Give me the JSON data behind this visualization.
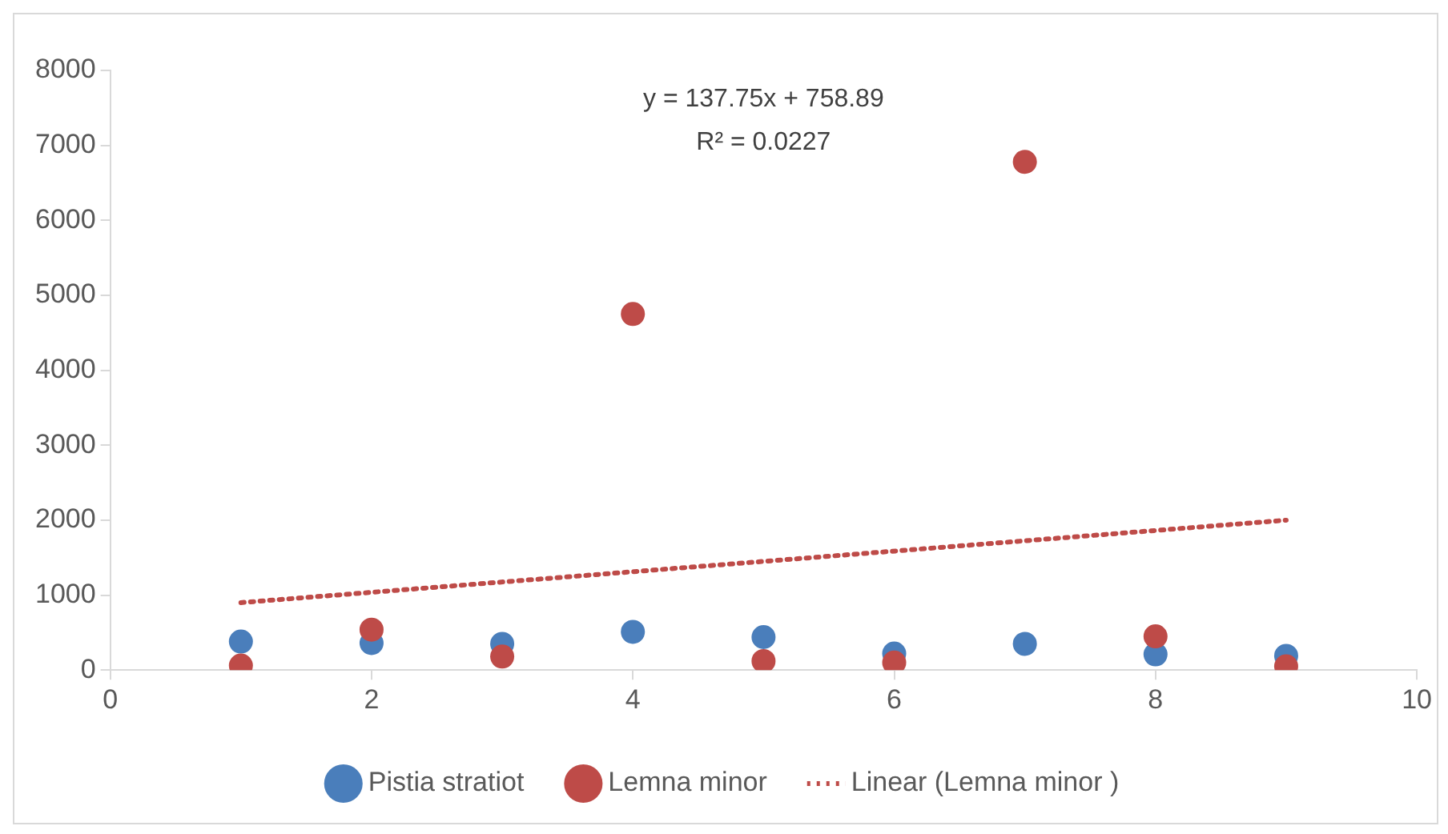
{
  "chart_data": {
    "type": "scatter",
    "x": [
      1,
      2,
      3,
      4,
      5,
      6,
      7,
      8,
      9
    ],
    "series": [
      {
        "name": "Pistia stratiot",
        "color": "#4a7ebb",
        "values": [
          380,
          360,
          350,
          510,
          440,
          220,
          350,
          210,
          190
        ]
      },
      {
        "name": "Lemna minor",
        "color": "#be4b48",
        "values": [
          60,
          540,
          180,
          4750,
          120,
          100,
          6780,
          450,
          50
        ]
      },
      {
        "name": "Linear (Lemna minor )",
        "type": "line",
        "color": "#be4b48",
        "line_style": "dotted",
        "marker": "none",
        "x": [
          1,
          9
        ],
        "values": [
          900,
          2000
        ]
      }
    ],
    "xlim": [
      0,
      10
    ],
    "xticks": [
      0,
      2,
      4,
      6,
      8,
      10
    ],
    "ylim": [
      0,
      8000
    ],
    "yticks": [
      0,
      1000,
      2000,
      3000,
      4000,
      5000,
      6000,
      7000,
      8000
    ],
    "grid": false,
    "legend": "bottom",
    "marker": "circle",
    "annotations": [
      "y = 137.75x + 758.89",
      "R² = 0.0227"
    ]
  }
}
